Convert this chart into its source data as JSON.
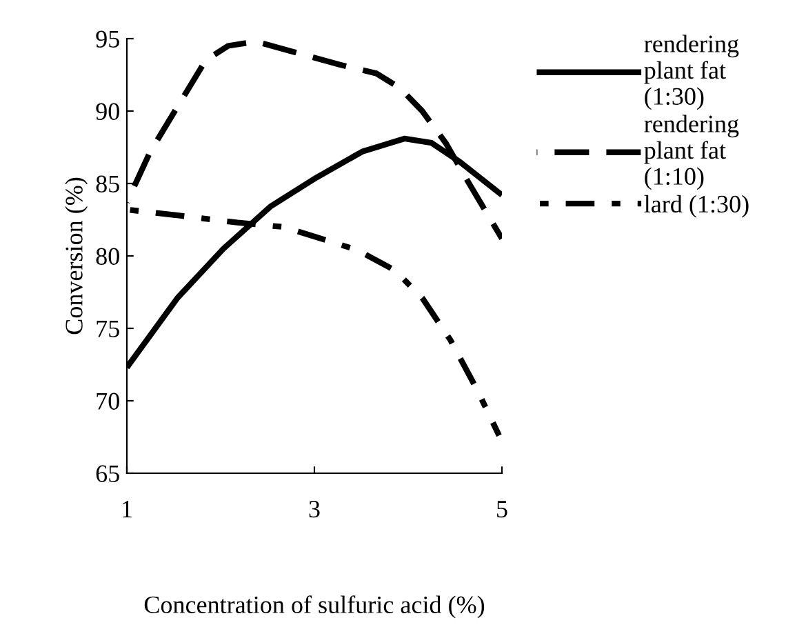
{
  "chart_data": {
    "type": "line",
    "xlabel": "Concentration of sulfuric acid (%)",
    "ylabel": "Conversion (%)",
    "xlim": [
      1,
      5
    ],
    "xticks": [
      1,
      3,
      5
    ],
    "ylim": [
      65,
      95
    ],
    "yticks": [
      65,
      70,
      75,
      80,
      85,
      90,
      95
    ],
    "grid": false,
    "legend": "right",
    "marker": "none",
    "series": [
      {
        "name": "rendering\nplant fat\n(1:30)",
        "color": "#000000",
        "line_style": "solid",
        "x": [
          1,
          1.54,
          2.03,
          2.53,
          3.02,
          3.51,
          3.96,
          4.25,
          4.55,
          5
        ],
        "values": [
          72.3,
          77.1,
          80.5,
          83.4,
          85.4,
          87.2,
          88.1,
          87.8,
          86.5,
          84.2
        ]
      },
      {
        "name": "rendering\nplant fat\n(1:10)",
        "color": "#000000",
        "line_style": "dashed",
        "x": [
          1,
          1.25,
          1.54,
          1.84,
          2.08,
          2.38,
          2.77,
          3.27,
          3.66,
          3.91,
          4.15,
          4.4,
          4.65,
          5
        ],
        "values": [
          83.7,
          87.2,
          90.3,
          93.5,
          94.5,
          94.8,
          94.1,
          93.2,
          92.6,
          91.6,
          90.0,
          87.8,
          85.0,
          81.2
        ]
      },
      {
        "name": "lard (1:30)",
        "color": "#000000",
        "line_style": "dashdot",
        "x": [
          1,
          1.54,
          2.18,
          2.67,
          3.02,
          3.46,
          3.86,
          4.15,
          4.45,
          4.74,
          4.97
        ],
        "values": [
          83.2,
          82.8,
          82.3,
          82.0,
          81.3,
          80.4,
          79.0,
          77.1,
          74.2,
          70.7,
          67.6
        ]
      }
    ]
  }
}
